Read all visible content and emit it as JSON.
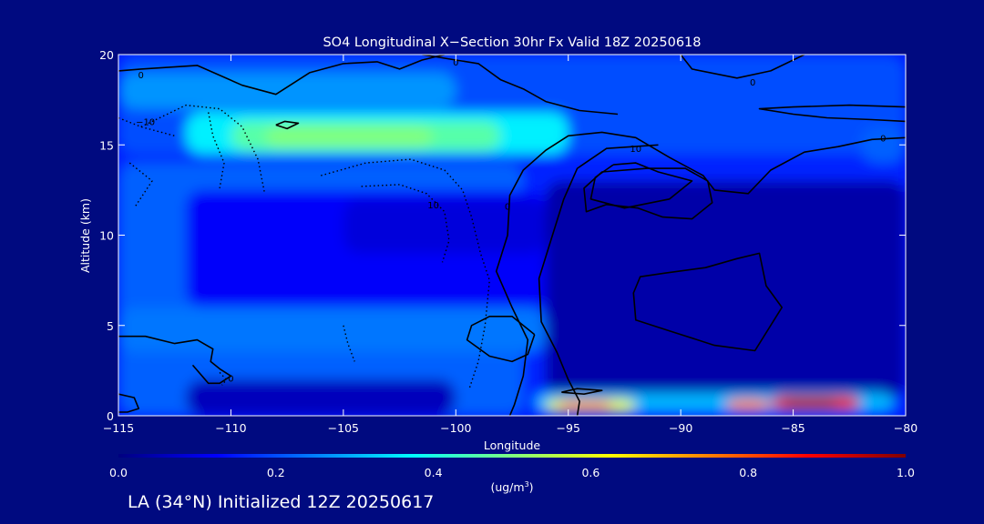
{
  "chart_data": {
    "type": "heatmap",
    "title": "SO4 Longitudinal X−Section 30hr  Fx Valid 18Z 20250618",
    "xlabel": "Longitude",
    "ylabel": "Altitude (km)",
    "xlim": [
      -115,
      -80
    ],
    "ylim": [
      0,
      20
    ],
    "x_ticks": [
      -115,
      -110,
      -105,
      -100,
      -95,
      -90,
      -85,
      -80
    ],
    "x_tick_labels": [
      "−115",
      "−110",
      "−105",
      "−100",
      "−95",
      "−90",
      "−85",
      "−80"
    ],
    "y_ticks": [
      0,
      5,
      10,
      15,
      20
    ],
    "y_tick_labels": [
      "0",
      "5",
      "10",
      "15",
      "20"
    ],
    "colorbar": {
      "range": [
        0.0,
        1.0
      ],
      "ticks": [
        0.0,
        0.2,
        0.4,
        0.6,
        0.8,
        1.0
      ],
      "tick_labels": [
        "0.0",
        "0.2",
        "0.4",
        "0.6",
        "0.8",
        "1.0"
      ],
      "unit_prefix": "(ug/m",
      "unit_sup": "3",
      "unit_suffix": ")",
      "stops": [
        "#00007f",
        "#0000ff",
        "#0080ff",
        "#00ffff",
        "#80ff80",
        "#ffff00",
        "#ff8000",
        "#ff0000",
        "#800000"
      ]
    },
    "field_regions": [
      {
        "lon": [
          -115,
          -80
        ],
        "alt": [
          0,
          20
        ],
        "value": 0.16
      },
      {
        "lon": [
          -115,
          -80
        ],
        "alt": [
          14.5,
          20
        ],
        "value": 0.2
      },
      {
        "lon": [
          -115,
          -97
        ],
        "alt": [
          0,
          14
        ],
        "value": 0.22
      },
      {
        "lon": [
          -112,
          -96
        ],
        "alt": [
          6,
          12.5
        ],
        "value": 0.12
      },
      {
        "lon": [
          -105,
          -96
        ],
        "alt": [
          9,
          12
        ],
        "value": 0.09
      },
      {
        "lon": [
          -115,
          -96
        ],
        "alt": [
          3.5,
          6
        ],
        "value": 0.24
      },
      {
        "lon": [
          -96,
          -80
        ],
        "alt": [
          1,
          13
        ],
        "value": 0.04
      },
      {
        "lon": [
          -112,
          -100
        ],
        "alt": [
          0,
          2
        ],
        "value": 0.06
      },
      {
        "lon": [
          -115,
          -100
        ],
        "alt": [
          17,
          19
        ],
        "value": 0.27
      },
      {
        "lon": [
          -82,
          -80
        ],
        "alt": [
          14,
          16
        ],
        "value": 0.22
      },
      {
        "lon": [
          -112,
          -95
        ],
        "alt": [
          14.5,
          16.8
        ],
        "value": 0.36
      },
      {
        "lon": [
          -110,
          -98
        ],
        "alt": [
          14.7,
          16.3
        ],
        "value": 0.46
      },
      {
        "lon": [
          -108.5,
          -101
        ],
        "alt": [
          14.9,
          16.0
        ],
        "value": 0.5
      },
      {
        "lon": [
          -96.5,
          -80.5
        ],
        "alt": [
          0.2,
          1.3
        ],
        "value": 0.3
      },
      {
        "lon": [
          -96,
          -92
        ],
        "alt": [
          0.2,
          0.9
        ],
        "value": 0.6
      },
      {
        "lon": [
          -95.5,
          -93
        ],
        "alt": [
          0.35,
          0.75
        ],
        "value": 0.82
      },
      {
        "lon": [
          -88,
          -86
        ],
        "alt": [
          0.3,
          0.9
        ],
        "value": 0.75
      },
      {
        "lon": [
          -86,
          -82
        ],
        "alt": [
          0.3,
          1.1
        ],
        "value": 0.9
      },
      {
        "lon": [
          -85.5,
          -83
        ],
        "alt": [
          0.4,
          0.95
        ],
        "value": 0.97
      }
    ],
    "contours": [
      {
        "style": "solid",
        "points": [
          [
            -115,
            19.1
          ],
          [
            -114,
            19.2
          ],
          [
            -111.5,
            19.4
          ],
          [
            -109.5,
            18.3
          ],
          [
            -108,
            17.8
          ],
          [
            -106.5,
            19.0
          ],
          [
            -105,
            19.5
          ],
          [
            -103.5,
            19.6
          ],
          [
            -102.5,
            19.2
          ],
          [
            -101.5,
            19.7
          ],
          [
            -100.5,
            20
          ]
        ]
      },
      {
        "style": "solid",
        "points": [
          [
            -101.5,
            20
          ],
          [
            -100,
            19.7
          ],
          [
            -99,
            19.5
          ],
          [
            -98,
            18.6
          ],
          [
            -97,
            18.1
          ],
          [
            -96,
            17.4
          ],
          [
            -94.5,
            16.9
          ],
          [
            -92.8,
            16.7
          ]
        ]
      },
      {
        "style": "solid",
        "points": [
          [
            -90,
            20
          ],
          [
            -89.5,
            19.2
          ],
          [
            -87.5,
            18.7
          ],
          [
            -86,
            19.1
          ],
          [
            -84.5,
            20
          ]
        ]
      },
      {
        "style": "solid",
        "points": [
          [
            -80,
            16.3
          ],
          [
            -81.5,
            16.4
          ],
          [
            -83.5,
            16.5
          ],
          [
            -85,
            16.7
          ],
          [
            -86.5,
            17.0
          ],
          [
            -85,
            17.1
          ],
          [
            -82.5,
            17.2
          ],
          [
            -80,
            17.1
          ]
        ]
      },
      {
        "style": "solid",
        "points": [
          [
            -80,
            15.4
          ],
          [
            -81.5,
            15.3
          ],
          [
            -83,
            14.9
          ],
          [
            -84.5,
            14.6
          ],
          [
            -86,
            13.6
          ],
          [
            -87,
            12.3
          ],
          [
            -88.5,
            12.5
          ],
          [
            -89,
            13.3
          ],
          [
            -90.5,
            14.3
          ],
          [
            -92,
            15.4
          ],
          [
            -93.5,
            15.7
          ],
          [
            -95,
            15.5
          ],
          [
            -96,
            14.7
          ],
          [
            -97,
            13.6
          ],
          [
            -97.6,
            12.2
          ],
          [
            -97.7,
            10.0
          ],
          [
            -98.2,
            8.0
          ],
          [
            -97.5,
            6.0
          ],
          [
            -96.8,
            4.2
          ],
          [
            -97,
            2.2
          ],
          [
            -97.4,
            0.6
          ],
          [
            -97.6,
            0
          ]
        ]
      },
      {
        "style": "solid",
        "points": [
          [
            -91,
            15.0
          ],
          [
            -93.3,
            14.8
          ],
          [
            -94.6,
            13.7
          ],
          [
            -95.2,
            12.0
          ],
          [
            -95.7,
            10.0
          ],
          [
            -96.3,
            7.6
          ],
          [
            -96.2,
            5.2
          ],
          [
            -95.5,
            3.5
          ],
          [
            -95,
            2.0
          ],
          [
            -94.5,
            0.8
          ],
          [
            -94.6,
            0
          ]
        ]
      },
      {
        "style": "solid",
        "points": [
          [
            -91.5,
            13.7
          ],
          [
            -93.5,
            13.5
          ],
          [
            -94.3,
            12.6
          ],
          [
            -94.2,
            11.3
          ],
          [
            -93.3,
            11.7
          ],
          [
            -91.9,
            11.5
          ],
          [
            -90.8,
            11.0
          ],
          [
            -89.5,
            10.9
          ],
          [
            -88.6,
            11.8
          ],
          [
            -88.8,
            13.0
          ],
          [
            -89.8,
            13.7
          ],
          [
            -91.5,
            13.7
          ]
        ]
      },
      {
        "style": "solid",
        "points": [
          [
            -93,
            13.9
          ],
          [
            -92,
            14.0
          ],
          [
            -91,
            13.5
          ],
          [
            -89.5,
            13.0
          ],
          [
            -90.5,
            12.0
          ],
          [
            -92.5,
            11.5
          ],
          [
            -94,
            12.0
          ],
          [
            -93.8,
            13.2
          ],
          [
            -93,
            13.9
          ]
        ]
      },
      {
        "style": "solid",
        "points": [
          [
            -90.7,
            7.9
          ],
          [
            -88.9,
            8.2
          ],
          [
            -87.5,
            8.7
          ],
          [
            -86.5,
            9.0
          ],
          [
            -86.2,
            7.2
          ],
          [
            -85.5,
            6.0
          ],
          [
            -86.7,
            3.6
          ],
          [
            -88.5,
            3.9
          ],
          [
            -90.5,
            4.7
          ],
          [
            -92,
            5.3
          ],
          [
            -92.1,
            6.8
          ],
          [
            -91.8,
            7.7
          ],
          [
            -90.7,
            7.9
          ]
        ]
      },
      {
        "style": "solid",
        "points": [
          [
            -96.5,
            4.5
          ],
          [
            -97.5,
            5.5
          ],
          [
            -98.5,
            5.5
          ],
          [
            -99.3,
            5.0
          ],
          [
            -99.5,
            4.2
          ],
          [
            -98.5,
            3.3
          ],
          [
            -97.5,
            3.0
          ],
          [
            -96.8,
            3.4
          ],
          [
            -96.5,
            4.5
          ]
        ]
      },
      {
        "style": "solid",
        "points": [
          [
            -108,
            16.1
          ],
          [
            -107.5,
            15.9
          ],
          [
            -107,
            16.2
          ],
          [
            -107.6,
            16.3
          ],
          [
            -108,
            16.1
          ]
        ]
      },
      {
        "style": "solid",
        "points": [
          [
            -115,
            4.4
          ],
          [
            -113.8,
            4.4
          ],
          [
            -112.5,
            4.0
          ],
          [
            -111.5,
            4.2
          ],
          [
            -110.8,
            3.7
          ],
          [
            -110.9,
            3.0
          ],
          [
            -110.5,
            2.6
          ],
          [
            -110,
            2.2
          ],
          [
            -110.5,
            1.8
          ],
          [
            -111,
            1.8
          ],
          [
            -111.7,
            2.8
          ]
        ]
      },
      {
        "style": "solid",
        "points": [
          [
            -115,
            1.2
          ],
          [
            -114.3,
            1.0
          ],
          [
            -114.1,
            0.4
          ],
          [
            -114.6,
            0.2
          ],
          [
            -115,
            0.2
          ]
        ]
      },
      {
        "style": "solid",
        "points": [
          [
            -95.3,
            1.3
          ],
          [
            -94.6,
            1.5
          ],
          [
            -93.5,
            1.4
          ],
          [
            -94.3,
            1.2
          ],
          [
            -95.3,
            1.3
          ]
        ]
      },
      {
        "style": "dotted",
        "points": [
          [
            -111,
            16.8
          ],
          [
            -110.8,
            15.5
          ],
          [
            -110.3,
            14.0
          ],
          [
            -110.5,
            12.6
          ]
        ]
      },
      {
        "style": "dotted",
        "points": [
          [
            -114,
            16.0
          ],
          [
            -112,
            17.2
          ],
          [
            -110.5,
            17.0
          ],
          [
            -109.5,
            16.0
          ],
          [
            -108.8,
            14.2
          ],
          [
            -108.5,
            12.3
          ]
        ]
      },
      {
        "style": "dotted",
        "points": [
          [
            -115,
            16.5
          ],
          [
            -114,
            16.0
          ],
          [
            -112.5,
            15.5
          ]
        ]
      },
      {
        "style": "dotted",
        "points": [
          [
            -114.5,
            14.0
          ],
          [
            -113.5,
            13.0
          ],
          [
            -114.3,
            11.5
          ]
        ]
      },
      {
        "style": "dotted",
        "points": [
          [
            -106,
            13.3
          ],
          [
            -104,
            14.0
          ],
          [
            -102,
            14.2
          ],
          [
            -100.5,
            13.6
          ],
          [
            -99.7,
            12.5
          ],
          [
            -99.3,
            11.0
          ],
          [
            -98.9,
            9.0
          ],
          [
            -98.5,
            7.5
          ],
          [
            -98.7,
            5.0
          ],
          [
            -99,
            3.0
          ],
          [
            -99.4,
            1.5
          ]
        ]
      },
      {
        "style": "dotted",
        "points": [
          [
            -104.2,
            12.7
          ],
          [
            -102.5,
            12.8
          ],
          [
            -101.3,
            12.3
          ],
          [
            -100.5,
            11.3
          ],
          [
            -100.3,
            9.7
          ],
          [
            -100.6,
            8.5
          ]
        ]
      },
      {
        "style": "dotted",
        "points": [
          [
            -105,
            5.0
          ],
          [
            -104.8,
            4.0
          ],
          [
            -104.5,
            3.0
          ]
        ]
      },
      {
        "style": "dotted",
        "points": [
          [
            -110.5,
            2.4
          ],
          [
            -110.2,
            2.0
          ],
          [
            -110.4,
            1.7
          ]
        ]
      }
    ],
    "contour_labels": [
      {
        "text": "0",
        "lon": -114,
        "alt": 18.9
      },
      {
        "text": "0",
        "lon": -100,
        "alt": 19.6
      },
      {
        "text": "0",
        "lon": -86.8,
        "alt": 18.5
      },
      {
        "text": "0",
        "lon": -81,
        "alt": 15.4
      },
      {
        "text": "−10",
        "lon": -113.8,
        "alt": 16.3
      },
      {
        "text": "10",
        "lon": -92,
        "alt": 14.8
      },
      {
        "text": "10",
        "lon": -101,
        "alt": 11.7
      },
      {
        "text": "0",
        "lon": -97.7,
        "alt": 11.6
      },
      {
        "text": "0",
        "lon": -110,
        "alt": 2.1
      }
    ]
  },
  "footer": "LA (34°N) Initialized 12Z 20250617"
}
